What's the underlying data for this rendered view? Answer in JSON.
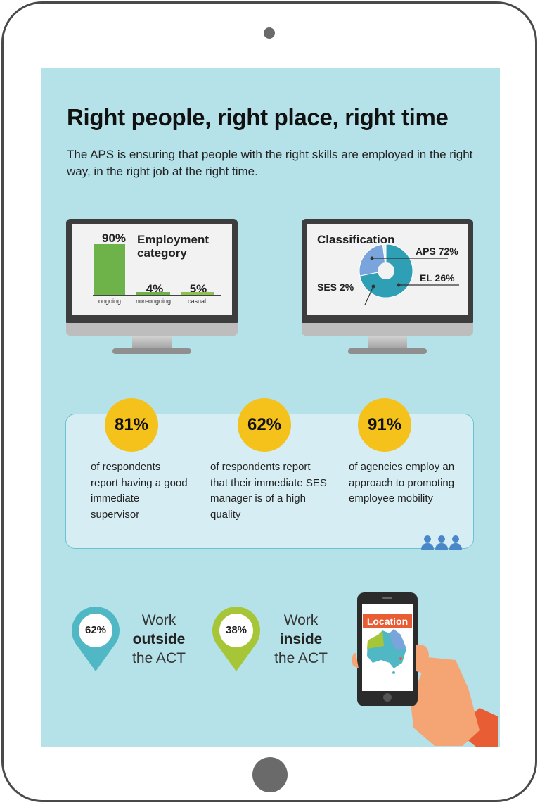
{
  "header": {
    "title": "Right people, right place, right time",
    "intro": "The APS is ensuring that people with the right skills are employed in the right way, in the right job at the right time."
  },
  "employment": {
    "title": "Employment category",
    "bars": [
      {
        "label": "ongoing",
        "value": 90,
        "text": "90%"
      },
      {
        "label": "non-ongoing",
        "value": 4,
        "text": "4%"
      },
      {
        "label": "casual",
        "value": 5,
        "text": "5%"
      }
    ]
  },
  "classification": {
    "title": "Classification",
    "slices": [
      {
        "label": "APS 72%",
        "value": 72,
        "color": "#2e9fb4"
      },
      {
        "label": "EL 26%",
        "value": 26,
        "color": "#7aa5dc"
      },
      {
        "label": "SES 2%",
        "value": 2,
        "color": "#e8f3f6"
      }
    ]
  },
  "stats": [
    {
      "value": "81%",
      "text": "of respondents report having a good immediate supervisor"
    },
    {
      "value": "62%",
      "text": "of respondents report that their immediate SES manager is of a high quality"
    },
    {
      "value": "91%",
      "text": "of agencies employ an approach to promoting employee mobility"
    }
  ],
  "location": {
    "outside": {
      "value": "62%",
      "line1": "Work",
      "line2": "outside",
      "line3": "the ACT",
      "color": "#4fb8c4"
    },
    "inside": {
      "value": "38%",
      "line1": "Work",
      "line2": "inside",
      "line3": "the ACT",
      "color": "#a6c638"
    },
    "phone_label": "Location"
  },
  "colors": {
    "background": "#b5e1e8",
    "badge": "#f4c21b",
    "phone_label": "#e85d34"
  }
}
